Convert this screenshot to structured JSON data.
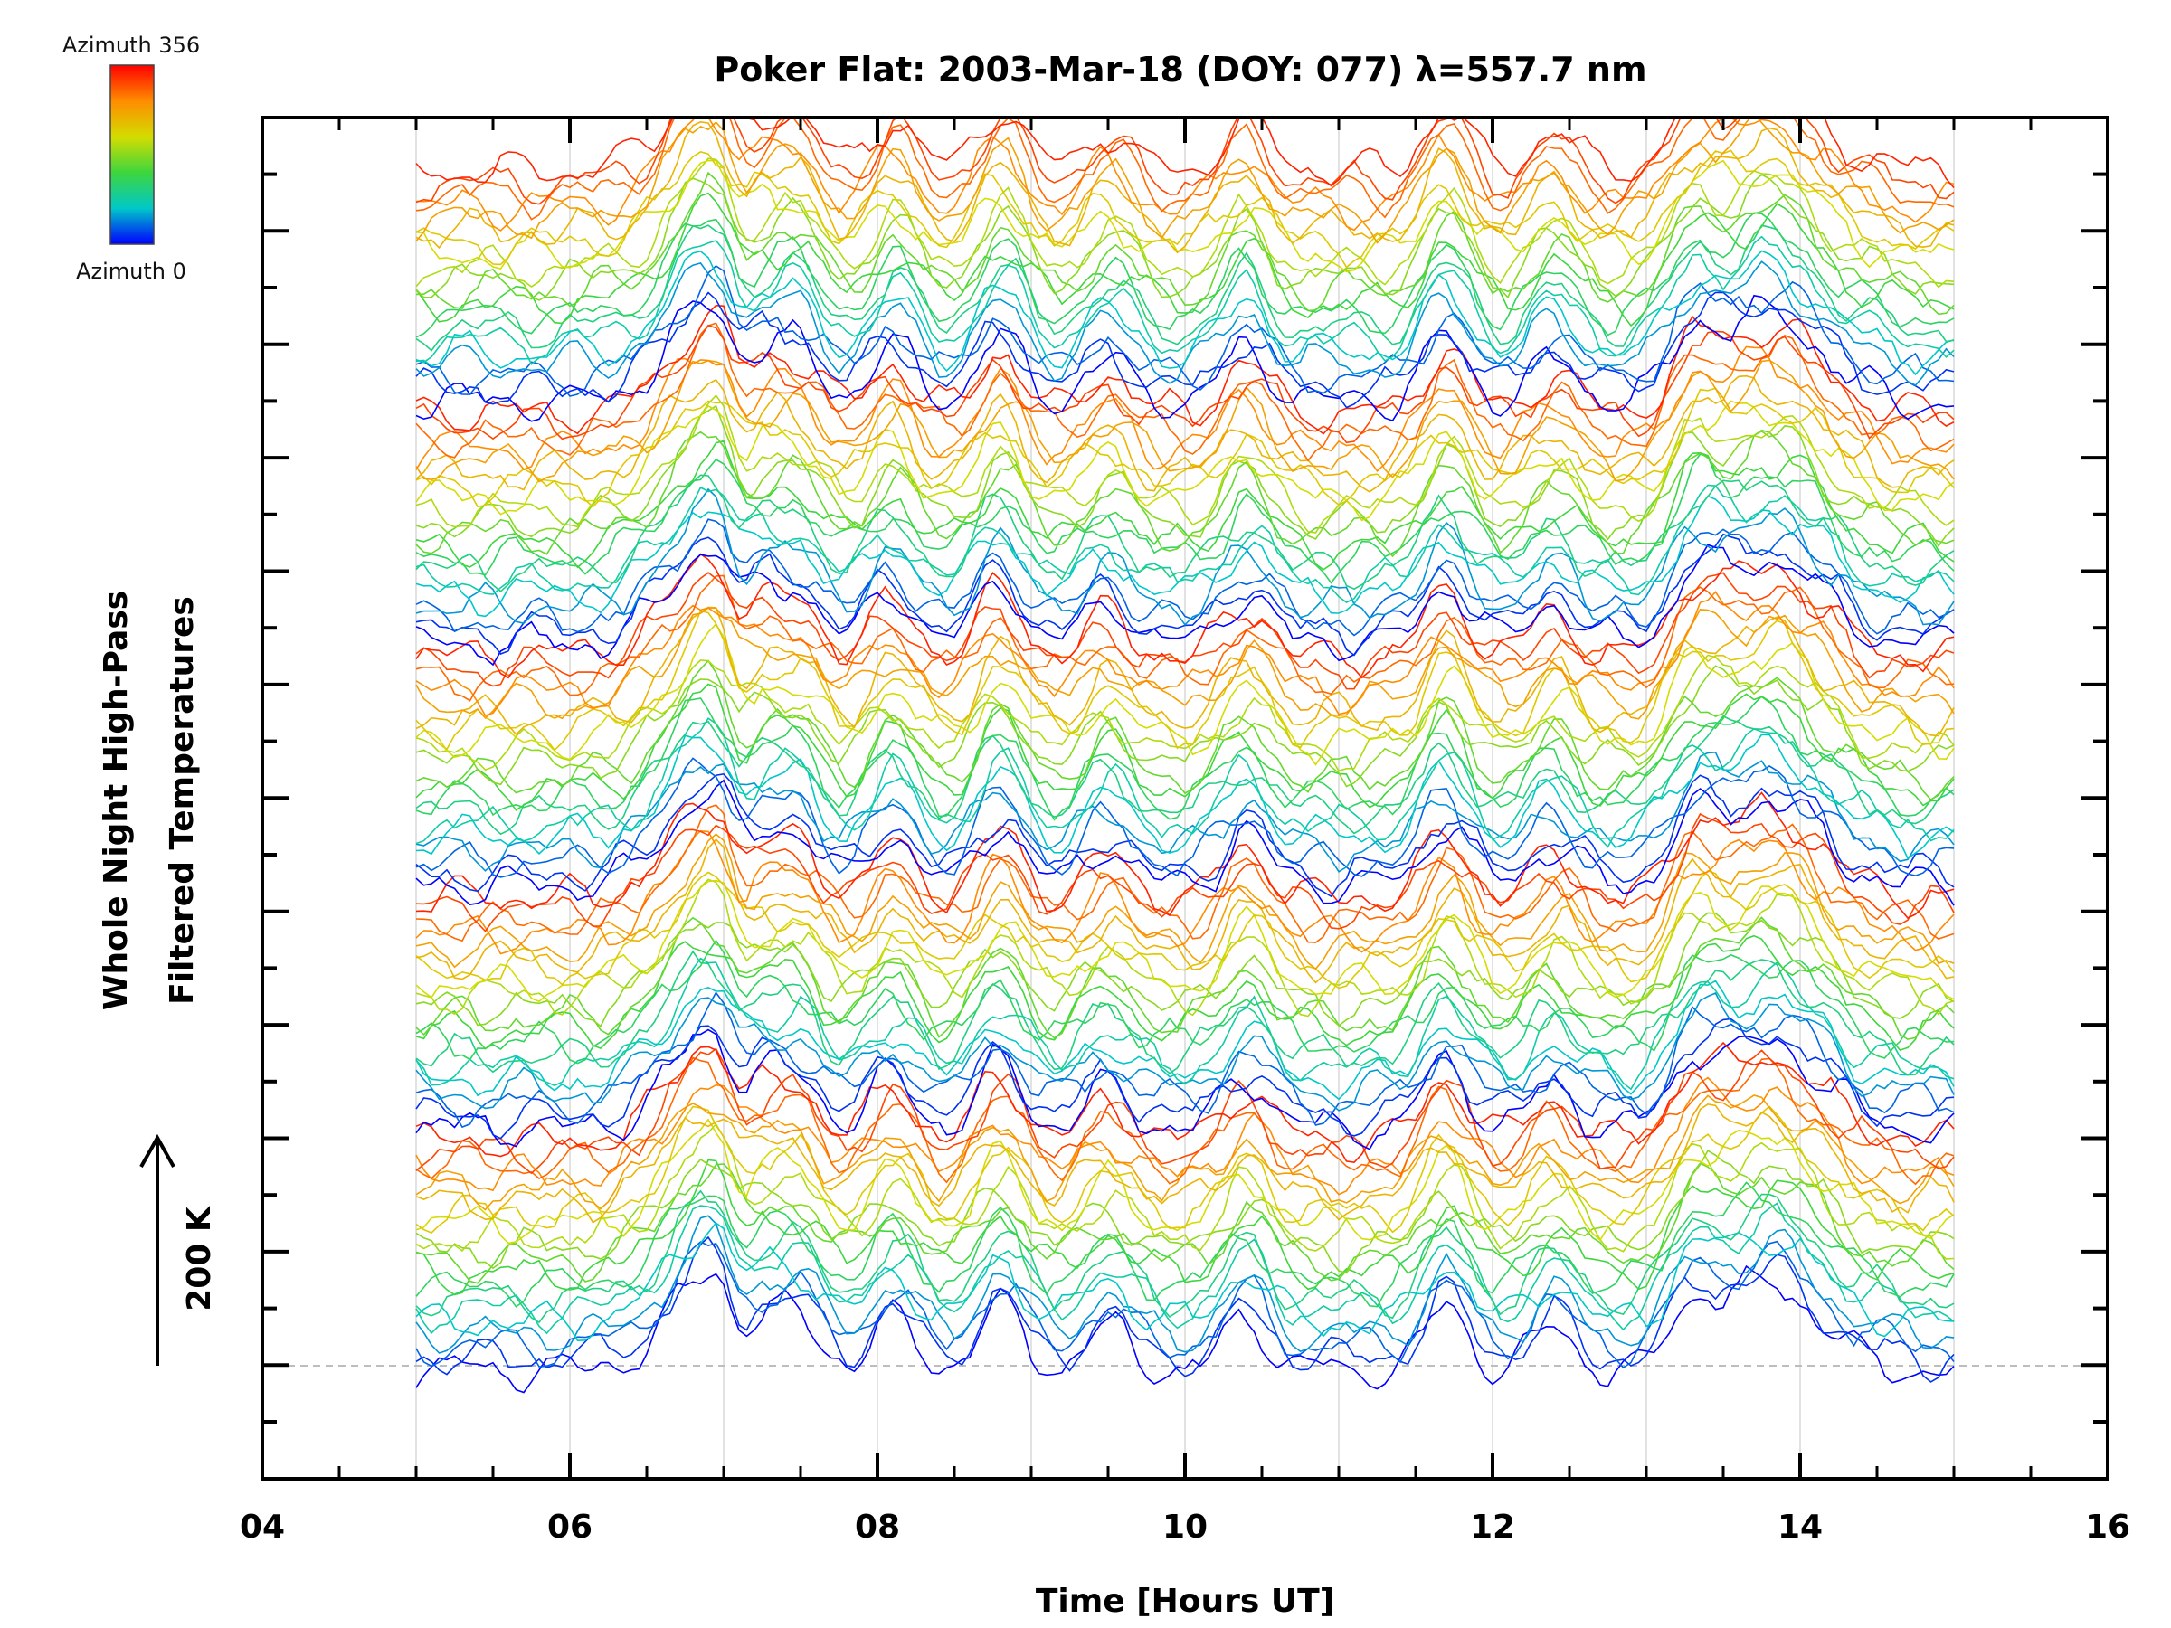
{
  "chart_data": {
    "type": "line",
    "title": "Poker Flat: 2003-Mar-18 (DOY: 077) λ=557.7 nm",
    "xlabel": "Time [Hours UT]",
    "ylabel_lines": [
      "Whole Night High-Pass",
      "Filtered Temperatures"
    ],
    "scale_label": "200 K",
    "xlim": [
      4,
      16
    ],
    "x_ticks": [
      "04",
      "06",
      "08",
      "10",
      "12",
      "14",
      "16"
    ],
    "x_grid_hours": [
      5,
      6,
      7,
      8,
      9,
      10,
      11,
      12,
      13,
      14,
      15
    ],
    "y_tick_count": 25,
    "grid": "vertical hourly lines, light gray",
    "legend": {
      "placement": "top-left",
      "type": "colorbar",
      "top_label": "Azimuth 356",
      "bottom_label": "Azimuth 0",
      "colors": [
        "#ff0000",
        "#ff8c00",
        "#d4dc00",
        "#3ed63e",
        "#00c8c8",
        "#0000ff"
      ]
    },
    "data_time_range": [
      5,
      15
    ],
    "series_note": "about 100 stacked, offset traces, one per azimuth, colored by azimuth",
    "series_count": 100,
    "common_features": {
      "peak_before_drop_hour": 7.0,
      "sharp_drop_hour": 7.1,
      "late_peak_hour": 13.8,
      "oscillation_peaks_hours": [
        7.5,
        8.1,
        8.8,
        9.5,
        10.4,
        11.7,
        12.4,
        13.3
      ]
    }
  }
}
